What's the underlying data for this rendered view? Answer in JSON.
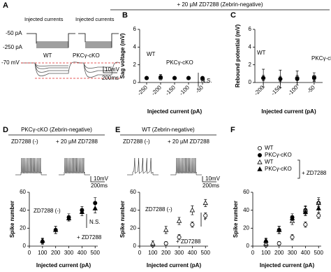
{
  "figure": {
    "panel_letters": [
      "A",
      "B",
      "C",
      "D",
      "E",
      "F"
    ],
    "header": "+ 20 µM ZD7288  (Zebrin-negative)",
    "panel_a": {
      "stim_labels": [
        "Injected currents",
        "Injected currents"
      ],
      "current_labels": [
        "-50 pA",
        "-250 pA"
      ],
      "vm_label": "-70 mV",
      "trace_labels": [
        "WT",
        "PKCγ-cKO"
      ],
      "scalebar": [
        "10mV",
        "200ms"
      ]
    }
  },
  "chart_data": [
    {
      "type": "errorbar",
      "xlabel": "Injected current (pA)",
      "ylabel": "Sag voltage (mV)",
      "x": [
        -250,
        -200,
        -150,
        -100,
        -50
      ],
      "xlim": [
        -275,
        -25
      ],
      "xticks": [
        -250,
        -200,
        -150,
        -100,
        -50
      ],
      "xtick_rotation": 45,
      "ylim": [
        0,
        6
      ],
      "yticks": [
        0,
        2,
        4,
        6
      ],
      "series": [
        {
          "name": "WT",
          "color": "#000000",
          "marker": "circle",
          "filled": false,
          "values": [
            0.5,
            0.5,
            0.5,
            0.5,
            0.4
          ],
          "errors": [
            0.1,
            0.2,
            0.1,
            0.1,
            0.1
          ]
        },
        {
          "name": "PKCγ-cKO",
          "color": "#000000",
          "marker": "circle",
          "filled": true,
          "values": [
            0.5,
            0.6,
            0.5,
            0.5,
            0.5
          ],
          "errors": [
            0.1,
            0.3,
            0.1,
            0.1,
            0.1
          ]
        }
      ],
      "annotations": [
        "N.S."
      ]
    },
    {
      "type": "errorbar",
      "xlabel": "Injected current (pA)",
      "ylabel": "Rebound potential (mV)",
      "x": [
        -200,
        -150,
        -100,
        -50
      ],
      "xlim": [
        -225,
        -25
      ],
      "xticks": [
        -200,
        -150,
        -100,
        -50
      ],
      "xtick_rotation": 45,
      "ylim": [
        0,
        6
      ],
      "yticks": [
        0,
        2,
        4,
        6
      ],
      "series": [
        {
          "name": "WT",
          "color": "#000000",
          "marker": "circle",
          "filled": false,
          "values": [
            0.5,
            0.4,
            0.5,
            0.6
          ],
          "errors": [
            0.3,
            1.0,
            0.8,
            0.5
          ]
        },
        {
          "name": "PKCγ-cKO",
          "color": "#000000",
          "marker": "circle",
          "filled": true,
          "values": [
            0.5,
            0.4,
            0.4,
            0.5
          ],
          "errors": [
            1.0,
            0.3,
            0.4,
            0.3
          ]
        }
      ]
    },
    {
      "type": "errorbar",
      "title": "PKCγ-cKO (Zebrin-negative)",
      "trace_labels": [
        "ZD7288  (-)",
        "+ 20 µM ZD7288"
      ],
      "scalebar": [
        "10mV",
        "200ms"
      ],
      "xlabel": "Injected current (pA)",
      "ylabel": "Spike number",
      "x": [
        100,
        200,
        300,
        400,
        500
      ],
      "xlim": [
        0,
        520
      ],
      "xticks": [
        0,
        100,
        200,
        300,
        400,
        500
      ],
      "ylim": [
        0,
        60
      ],
      "yticks": [
        0,
        20,
        40,
        60
      ],
      "series": [
        {
          "name": "ZD7288 (-)",
          "color": "#000000",
          "marker": "circle",
          "filled": true,
          "values": [
            5,
            18,
            32,
            40,
            48
          ],
          "errors": [
            3,
            4,
            4,
            4,
            6
          ]
        },
        {
          "name": "+ ZD7288",
          "color": "#000000",
          "marker": "triangle",
          "filled": true,
          "values": [
            6,
            18,
            31,
            38,
            42
          ],
          "errors": [
            3,
            4,
            3,
            4,
            5
          ]
        }
      ],
      "annotations": [
        "N.S."
      ]
    },
    {
      "type": "errorbar",
      "title": "WT  (Zebrin-negative)",
      "trace_labels": [
        "ZD7288  (-)",
        "+ 20 µM ZD7288"
      ],
      "scalebar": [
        "10mV",
        "200ms"
      ],
      "xlabel": "Injected current (pA)",
      "ylabel": "Spike number",
      "x": [
        100,
        200,
        300,
        400,
        500
      ],
      "xlim": [
        0,
        520
      ],
      "xticks": [
        0,
        100,
        200,
        300,
        400,
        500
      ],
      "ylim": [
        0,
        60
      ],
      "yticks": [
        0,
        20,
        40,
        60
      ],
      "series": [
        {
          "name": "ZD7288 (-)",
          "color": "#000000",
          "marker": "circle",
          "filled": false,
          "values": [
            1,
            3,
            10,
            24,
            34
          ],
          "errors": [
            1,
            2,
            3,
            3,
            3
          ]
        },
        {
          "name": "+ ZD7288",
          "color": "#000000",
          "marker": "triangle",
          "filled": false,
          "values": [
            3,
            18,
            28,
            40,
            48
          ],
          "errors": [
            3,
            4,
            4,
            5,
            4
          ]
        }
      ],
      "annotations": [
        "*"
      ]
    },
    {
      "type": "errorbar",
      "legend": "top-left",
      "xlabel": "Injected current (pA)",
      "ylabel": "Spike number",
      "x": [
        100,
        200,
        300,
        400,
        500
      ],
      "xlim": [
        0,
        520
      ],
      "xticks": [
        0,
        100,
        200,
        300,
        400,
        500
      ],
      "ylim": [
        0,
        60
      ],
      "yticks": [
        0,
        20,
        40,
        60
      ],
      "series": [
        {
          "name": "WT",
          "color": "#000000",
          "marker": "circle",
          "filled": false,
          "values": [
            1,
            3,
            10,
            24,
            34
          ],
          "errors": [
            1,
            2,
            3,
            3,
            3
          ]
        },
        {
          "name": "PKCγ-cKO",
          "color": "#000000",
          "marker": "circle",
          "filled": true,
          "values": [
            5,
            18,
            32,
            40,
            48
          ],
          "errors": [
            3,
            4,
            4,
            4,
            6
          ]
        },
        {
          "name": "WT",
          "color": "#000000",
          "marker": "triangle",
          "filled": false,
          "values": [
            3,
            18,
            28,
            40,
            48
          ],
          "errors": [
            3,
            4,
            4,
            5,
            4
          ]
        },
        {
          "name": "PKCγ-cKO",
          "color": "#000000",
          "marker": "triangle",
          "filled": true,
          "values": [
            6,
            18,
            31,
            38,
            42
          ],
          "errors": [
            3,
            4,
            3,
            4,
            5
          ]
        }
      ],
      "annotations": [
        "+ ZD7288"
      ]
    }
  ]
}
